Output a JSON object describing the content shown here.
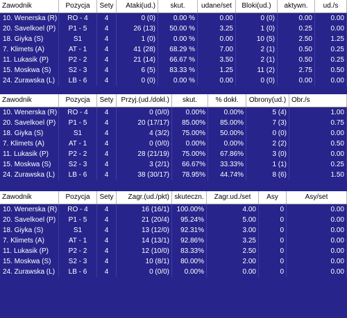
{
  "players": [
    {
      "name": "10. Wenerska (R)",
      "position": "RO - 4",
      "sets": "4"
    },
    {
      "name": "20. Savelkoel (P)",
      "position": "P1 - 5",
      "sets": "4"
    },
    {
      "name": "18. Giyka (S)",
      "position": "S1",
      "sets": "4"
    },
    {
      "name": "7. Klimets (A)",
      "position": "AT - 1",
      "sets": "4"
    },
    {
      "name": "11. Lukasik (P)",
      "position": "P2 - 2",
      "sets": "4"
    },
    {
      "name": "15. Moskwa (S)",
      "position": "S2 - 3",
      "sets": "4"
    },
    {
      "name": "24. Zurawska (L)",
      "position": "LB - 6",
      "sets": "4"
    }
  ],
  "tables": [
    {
      "headers": [
        "Zawodnik",
        "Pozycja",
        "Sety",
        "Ataki(ud.)",
        "skut.",
        "udane/set",
        "Bloki(ud.)",
        "aktywn.",
        "ud./s"
      ],
      "rows": [
        [
          "0 (0)",
          "0.00 %",
          "0.00",
          "0 (0)",
          "0.00",
          "0.00"
        ],
        [
          "26 (13)",
          "50.00 %",
          "3.25",
          "1 (0)",
          "0.25",
          "0.00"
        ],
        [
          "1 (0)",
          "0.00 %",
          "0.00",
          "10 (5)",
          "2.50",
          "1.25"
        ],
        [
          "41 (28)",
          "68.29 %",
          "7.00",
          "2 (1)",
          "0.50",
          "0.25"
        ],
        [
          "21 (14)",
          "66.67 %",
          "3.50",
          "2 (1)",
          "0.50",
          "0.25"
        ],
        [
          "6 (5)",
          "83.33 %",
          "1.25",
          "11 (2)",
          "2.75",
          "0.50"
        ],
        [
          "0 (0)",
          "0.00 %",
          "0.00",
          "0 (0)",
          "0.00",
          "0.00"
        ]
      ]
    },
    {
      "headers": [
        "Zawodnik",
        "Pozycja",
        "Sety",
        "Przyj.(ud./dokł.)",
        "skut.",
        "% dokł.",
        "Obrony(ud.)",
        "Obr./s"
      ],
      "rows": [
        [
          "0 (0/0)",
          "0.00%",
          "0.00%",
          "5 (4)",
          "1.00"
        ],
        [
          "20 (17/17)",
          "85.00%",
          "85.00%",
          "7 (3)",
          "0.75"
        ],
        [
          "4 (3/2)",
          "75.00%",
          "50.00%",
          "0 (0)",
          "0.00"
        ],
        [
          "0 (0/0)",
          "0.00%",
          "0.00%",
          "2 (2)",
          "0.50"
        ],
        [
          "28 (21/19)",
          "75.00%",
          "67.86%",
          "3 (0)",
          "0.00"
        ],
        [
          "3 (2/1)",
          "66.67%",
          "33.33%",
          "1 (1)",
          "0.25"
        ],
        [
          "38 (30/17)",
          "78.95%",
          "44.74%",
          "8 (6)",
          "1.50"
        ]
      ]
    },
    {
      "headers": [
        "Zawodnik",
        "Pozycja",
        "Sety",
        "Zagr.(ud./pkt)",
        "skuteczn.",
        "Zagr.ud./set",
        "Asy",
        "Asy/set"
      ],
      "rows": [
        [
          "16 (16/1)",
          "100.00%",
          "4.00",
          "0",
          "0.00"
        ],
        [
          "21 (20/4)",
          "95.24%",
          "5.00",
          "0",
          "0.00"
        ],
        [
          "13 (12/0)",
          "92.31%",
          "3.00",
          "0",
          "0.00"
        ],
        [
          "14 (13/1)",
          "92.86%",
          "3.25",
          "0",
          "0.00"
        ],
        [
          "12 (10/0)",
          "83.33%",
          "2.50",
          "0",
          "0.00"
        ],
        [
          "10 (8/1)",
          "80.00%",
          "2.00",
          "0",
          "0.00"
        ],
        [
          "0 (0/0)",
          "0.00%",
          "0.00",
          "0",
          "0.00"
        ]
      ]
    }
  ],
  "colors": {
    "background": "#27248c",
    "header": "#ffffff",
    "text": "#ffffff"
  }
}
